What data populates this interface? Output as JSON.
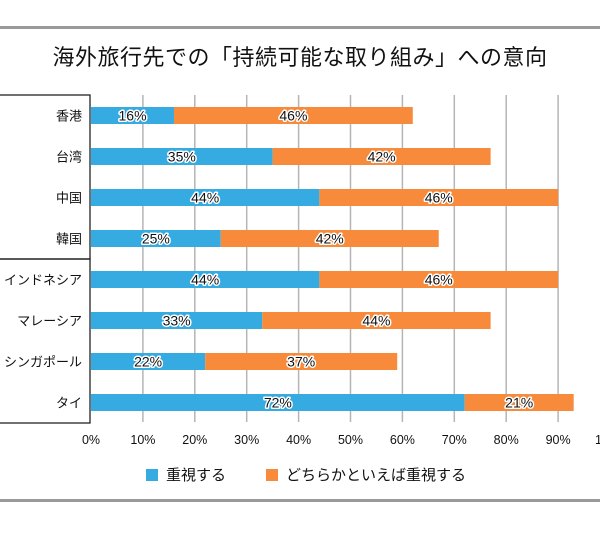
{
  "chart_data": {
    "type": "bar",
    "orientation": "horizontal",
    "stacked": true,
    "title": "海外旅行先での「持続可能な取り組み」への意向",
    "categories": [
      "香港",
      "台湾",
      "中国",
      "韓国",
      "インドネシア",
      "マレーシア",
      "シンガポール",
      "タイ"
    ],
    "category_groups": [
      {
        "members": [
          "香港",
          "台湾",
          "中国",
          "韓国"
        ]
      },
      {
        "members": [
          "インドネシア",
          "マレーシア",
          "シンガポール",
          "タイ"
        ]
      }
    ],
    "series": [
      {
        "name": "重視する",
        "color": "#35ABE2",
        "values": [
          16,
          35,
          44,
          25,
          44,
          33,
          22,
          72
        ]
      },
      {
        "name": "どちらかといえば重視する",
        "color": "#F78A3B",
        "values": [
          46,
          42,
          46,
          42,
          46,
          44,
          37,
          21
        ]
      }
    ],
    "value_labels": [
      [
        "16%",
        "35%",
        "44%",
        "25%",
        "44%",
        "33%",
        "22%",
        "72%"
      ],
      [
        "46%",
        "42%",
        "46%",
        "42%",
        "46%",
        "44%",
        "37%",
        "21%"
      ]
    ],
    "xlim": [
      0,
      100
    ],
    "xticks": [
      "0%",
      "10%",
      "20%",
      "30%",
      "40%",
      "50%",
      "60%",
      "70%",
      "80%",
      "90%",
      "1"
    ],
    "xlabel": "",
    "ylabel": "",
    "grid": true,
    "gridline_color": "#B5B5B5",
    "legend_position": "bottom"
  }
}
